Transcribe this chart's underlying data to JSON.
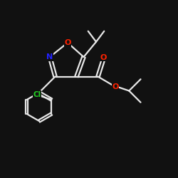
{
  "background_color": "#111111",
  "bond_color": "#e8e8e8",
  "atom_colors": {
    "O": "#ff2200",
    "N": "#2222ff",
    "Cl": "#22cc22",
    "C": "#e8e8e8"
  },
  "xlim": [
    0,
    10
  ],
  "ylim": [
    0,
    10
  ]
}
